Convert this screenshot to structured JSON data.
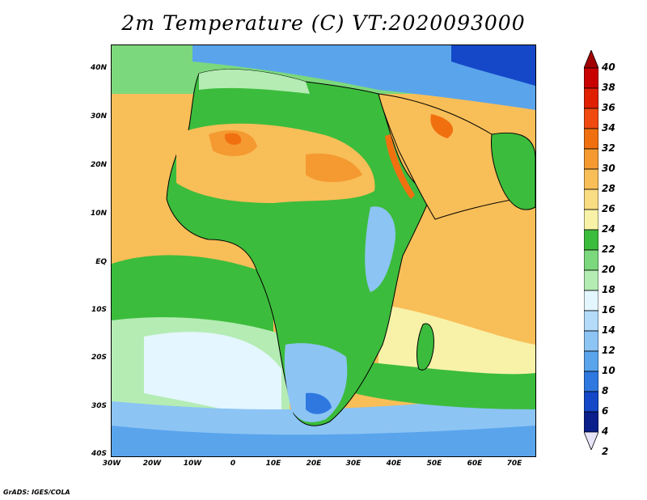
{
  "title": "2m Temperature (C) VT:2020093000",
  "credit": "GrADS: IGES/COLA",
  "axes": {
    "y_ticks": [
      "40N",
      "30N",
      "20N",
      "10N",
      "EQ",
      "10S",
      "20S",
      "30S",
      "40S"
    ],
    "x_ticks": [
      "30W",
      "20W",
      "10W",
      "0",
      "10E",
      "20E",
      "30E",
      "40E",
      "50E",
      "60E",
      "70E"
    ],
    "lon_range": [
      -30,
      75
    ],
    "lat_range": [
      -40,
      45
    ]
  },
  "colorbar": {
    "labels": [
      "40",
      "38",
      "36",
      "34",
      "32",
      "30",
      "28",
      "26",
      "24",
      "22",
      "20",
      "18",
      "16",
      "14",
      "12",
      "10",
      "8",
      "6",
      "4",
      "2"
    ],
    "colors": [
      "#a00000",
      "#c80000",
      "#e02000",
      "#f04a10",
      "#f07010",
      "#f49a30",
      "#f8be58",
      "#fadc82",
      "#f8f2a8",
      "#3cbc3c",
      "#7cd87c",
      "#b4ecb4",
      "#e4f6ff",
      "#b4dcfa",
      "#8cc4f4",
      "#5aa4ec",
      "#2e78e0",
      "#1448c8",
      "#0a1e8c",
      "#e8e4f8"
    ]
  }
}
